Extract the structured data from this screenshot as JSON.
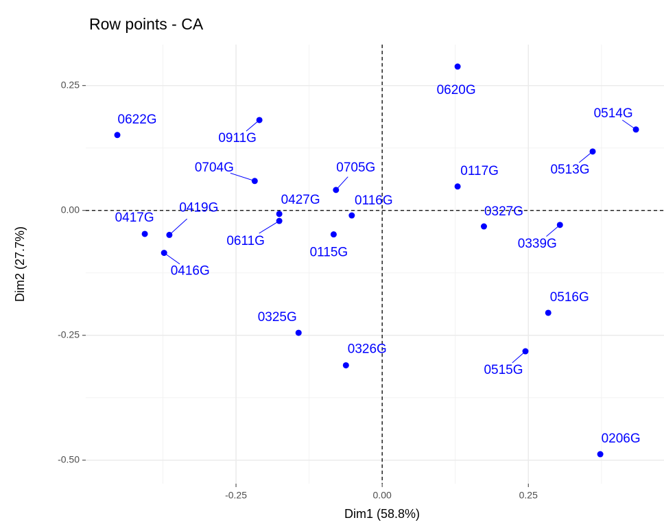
{
  "chart_data": {
    "type": "scatter",
    "title": "Row points - CA",
    "xlabel": "Dim1 (58.8%)",
    "ylabel": "Dim2 (27.7%)",
    "xlim": [
      -0.507,
      0.482
    ],
    "ylim": [
      -0.547,
      0.332
    ],
    "xticks": [
      {
        "value": -0.25,
        "label": "-0.25"
      },
      {
        "value": 0,
        "label": "0.00"
      },
      {
        "value": 0.25,
        "label": "0.25"
      }
    ],
    "yticks": [
      {
        "value": -0.5,
        "label": "-0.50"
      },
      {
        "value": -0.25,
        "label": "-0.25"
      },
      {
        "value": 0,
        "label": "0.00"
      },
      {
        "value": 0.25,
        "label": "0.25"
      }
    ],
    "grid": true,
    "reference_lines": {
      "x": 0,
      "y": 0
    },
    "color": "#0000ff",
    "labels": [
      "0620G",
      "0622G",
      "0911G",
      "0514G",
      "0513G",
      "0704G",
      "0705G",
      "0117G",
      "0427G",
      "0116G",
      "0417G",
      "0419G",
      "0416G",
      "0115G",
      "0611G",
      "0327G",
      "0339G",
      "0516G",
      "0325G",
      "0515G",
      "0326G",
      "0206G"
    ],
    "x": [
      0.129,
      -0.453,
      -0.21,
      0.434,
      0.36,
      -0.218,
      -0.079,
      0.129,
      -0.176,
      -0.052,
      -0.406,
      -0.364,
      -0.373,
      -0.083,
      -0.176,
      0.174,
      0.304,
      0.284,
      -0.143,
      0.245,
      -0.062,
      0.373
    ],
    "y": [
      0.288,
      0.151,
      0.181,
      0.162,
      0.118,
      0.059,
      0.041,
      0.048,
      -0.007,
      -0.01,
      -0.047,
      -0.049,
      -0.085,
      -0.048,
      -0.021,
      -0.032,
      -0.029,
      -0.205,
      -0.245,
      -0.282,
      -0.31,
      -0.488
    ]
  }
}
